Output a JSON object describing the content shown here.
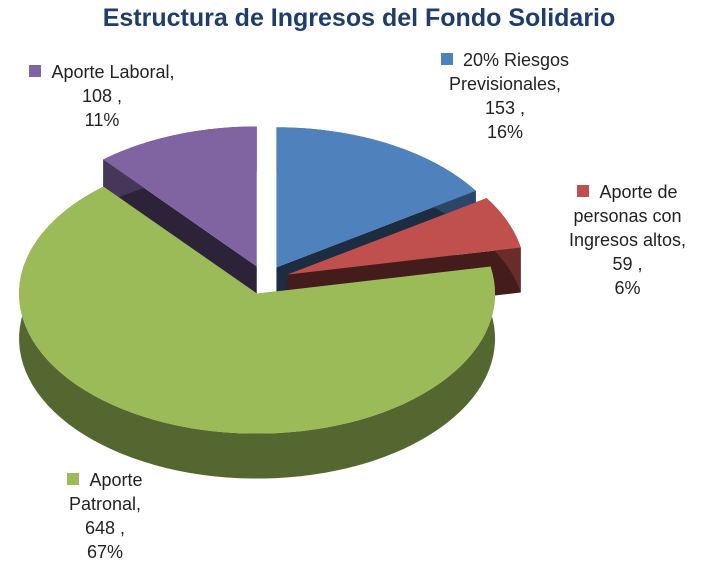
{
  "chart_data": {
    "type": "pie3d",
    "title": "Estructura de Ingresos del Fondo Solidario",
    "categories": [
      "20% Riesgos Previsionales,",
      "Aporte de personas con Ingresos altos,",
      "Aporte Patronal,",
      "Aporte Laboral,"
    ],
    "values": [
      153,
      59,
      648,
      108
    ],
    "value_labels": [
      "153 ,",
      "59 ,",
      "648 ,",
      "108 ,"
    ],
    "percent_labels": [
      "16%",
      "6%",
      "67%",
      "11%"
    ],
    "colors": [
      "#4f81bd",
      "#c0504d",
      "#9bbb59",
      "#8064a2"
    ]
  }
}
